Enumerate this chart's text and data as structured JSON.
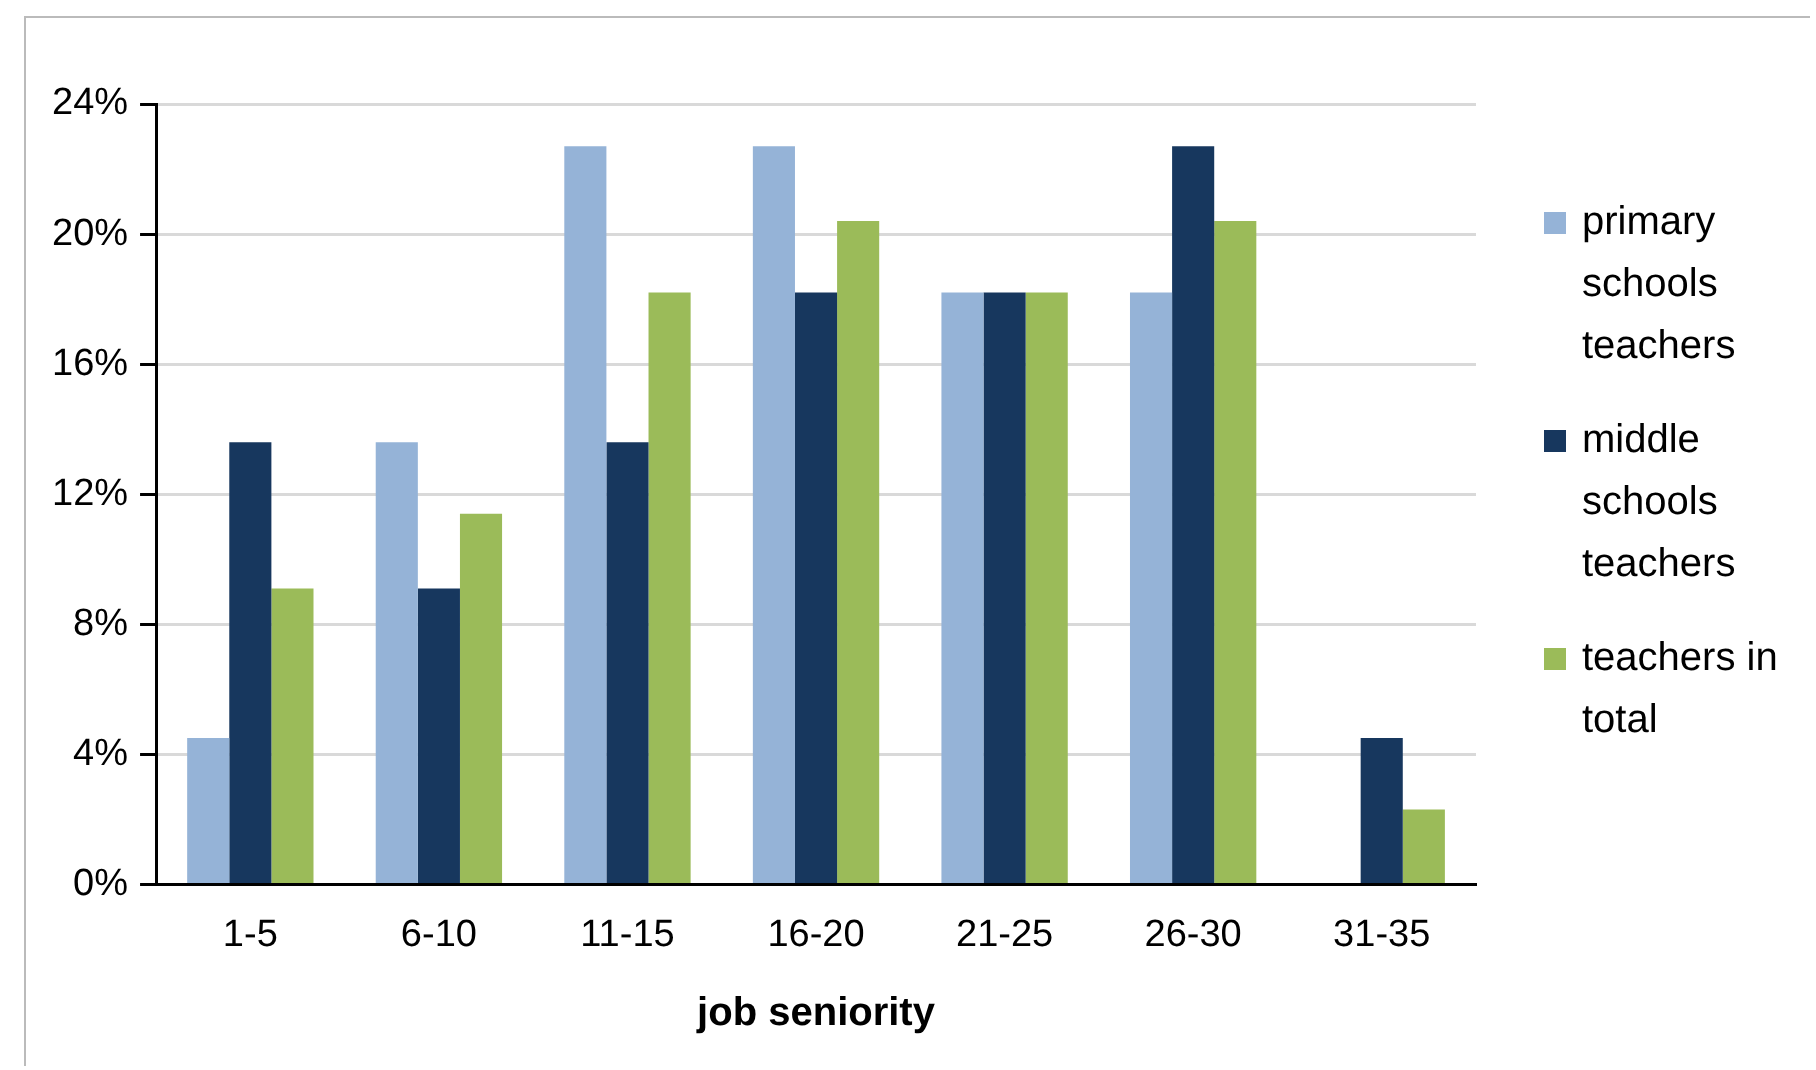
{
  "chart_data": {
    "type": "bar",
    "xlabel": "job seniority",
    "categories": [
      "1-5",
      "6-10",
      "11-15",
      "16-20",
      "21-25",
      "26-30",
      "31-35"
    ],
    "series": [
      {
        "name": "primary schools teachers",
        "color": "#95b3d7",
        "values": [
          4.5,
          13.6,
          22.7,
          22.7,
          18.2,
          18.2,
          0
        ]
      },
      {
        "name": "middle schools teachers",
        "color": "#17375e",
        "values": [
          13.6,
          9.1,
          13.6,
          18.2,
          18.2,
          22.7,
          4.5
        ]
      },
      {
        "name": "teachers in total",
        "color": "#9bbb59",
        "values": [
          9.1,
          11.4,
          18.2,
          20.4,
          18.2,
          20.4,
          2.3
        ]
      }
    ],
    "ylim": [
      0,
      24
    ],
    "yticks": [
      {
        "value": 0,
        "label": "0%"
      },
      {
        "value": 4,
        "label": "4%"
      },
      {
        "value": 8,
        "label": "8%"
      },
      {
        "value": 12,
        "label": "12%"
      },
      {
        "value": 16,
        "label": "16%"
      },
      {
        "value": 20,
        "label": "20%"
      },
      {
        "value": 24,
        "label": "24%"
      }
    ],
    "grid": "y",
    "legend": "right"
  }
}
